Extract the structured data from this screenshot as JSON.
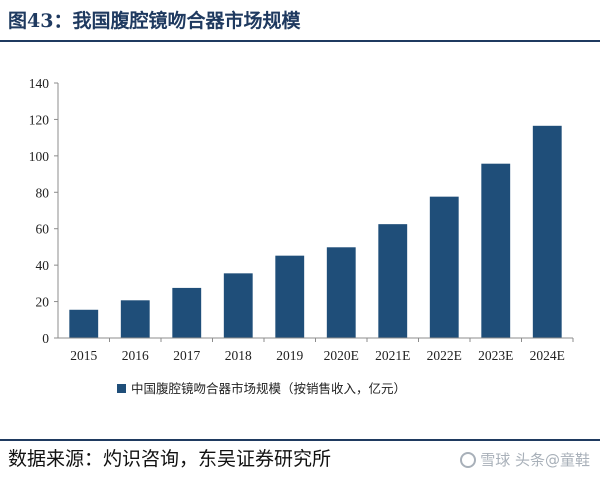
{
  "header": {
    "title": "图43：我国腹腔镜吻合器市场规模"
  },
  "footer": {
    "source": "数据来源：灼识咨询，东吴证券研究所",
    "watermark": "雪球 头条@童鞋"
  },
  "colors": {
    "bar": "#1f4e79",
    "title": "#1f3a60",
    "axis": "#8c8c8c"
  },
  "chart_data": {
    "type": "bar",
    "categories": [
      "2015",
      "2016",
      "2017",
      "2018",
      "2019",
      "2020E",
      "2021E",
      "2022E",
      "2023E",
      "2024E"
    ],
    "series": [
      {
        "name": "中国腹腔镜吻合器市场规模（按销售收入，亿元）",
        "values": [
          15.5,
          20.7,
          27.5,
          35.5,
          45.2,
          49.8,
          62.5,
          77.6,
          95.7,
          116.5
        ]
      }
    ],
    "ylim": [
      0,
      140
    ],
    "yticks": [
      0,
      20,
      40,
      60,
      80,
      100,
      120,
      140
    ],
    "grid": false,
    "legend_position": "bottom"
  }
}
